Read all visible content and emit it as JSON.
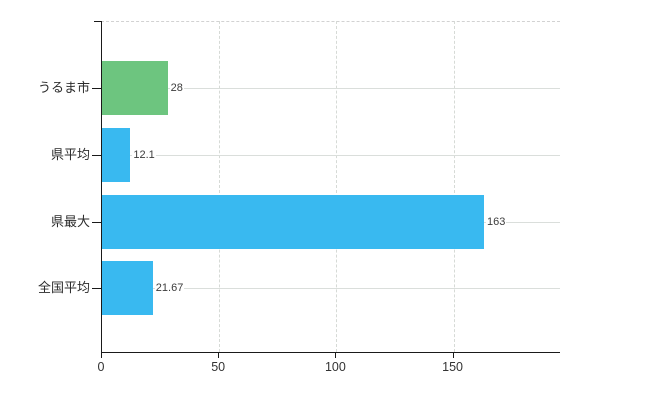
{
  "chart_data": {
    "type": "bar",
    "orientation": "horizontal",
    "title": "",
    "xlabel": "",
    "ylabel": "",
    "categories": [
      "うるま市",
      "県平均",
      "県最大",
      "全国平均"
    ],
    "values": [
      28,
      12.1,
      163,
      21.67
    ],
    "value_labels": [
      "28",
      "12.1",
      "163",
      "21.67"
    ],
    "series": [
      {
        "name": "value",
        "values": [
          28,
          12.1,
          163,
          21.67
        ]
      }
    ],
    "xlim": [
      0,
      195.4
    ],
    "xticks": [
      0,
      50,
      100,
      150
    ],
    "xtick_labels": [
      "0",
      "50",
      "100",
      "150"
    ],
    "grid": true,
    "legend": false,
    "bar_colors": [
      "#6dc57f",
      "#39b9f0",
      "#39b9f0",
      "#39b9f0"
    ]
  },
  "style": {
    "background": "#ffffff",
    "axis_color": "#1a1a1a",
    "grid_color_h": "#dadedb",
    "grid_color_v": "#d6dad6",
    "top_border_dashed_color": "#d2d2d2",
    "value_label_color": "#3c3c3c",
    "category_label_color": "#2b2b2b",
    "tick_label_color": "#333333",
    "accent_green": "#6dc57f",
    "accent_blue": "#39b9f0"
  }
}
